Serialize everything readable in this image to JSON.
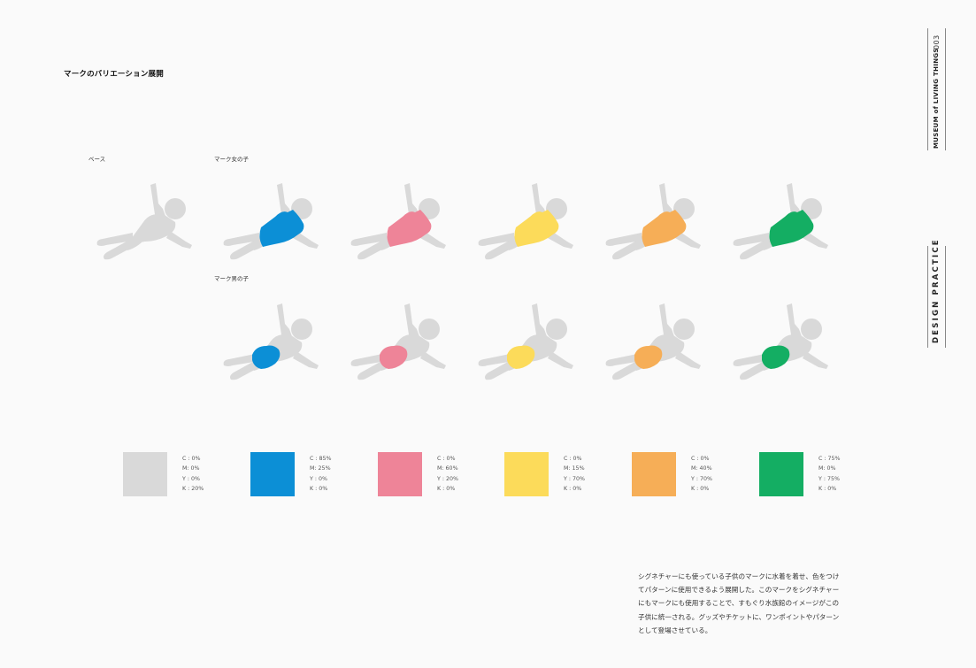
{
  "page_title": "マークのバリエーション展開",
  "labels": {
    "base": "ベース",
    "girl": "マーク女の子",
    "boy": "マーク男の子"
  },
  "colors": {
    "base_gray": "#d9d9d9",
    "blue": "#0c8fd6",
    "pink": "#ee8498",
    "yellow": "#fcdb5a",
    "orange": "#f6ae57",
    "green": "#14ae63"
  },
  "girls": [
    {
      "color": "#0c8fd6"
    },
    {
      "color": "#ee8498"
    },
    {
      "color": "#fcdb5a"
    },
    {
      "color": "#f6ae57"
    },
    {
      "color": "#14ae63"
    }
  ],
  "boys": [
    {
      "color": "#0c8fd6"
    },
    {
      "color": "#ee8498"
    },
    {
      "color": "#fcdb5a"
    },
    {
      "color": "#f6ae57"
    },
    {
      "color": "#14ae63"
    }
  ],
  "swatches": [
    {
      "color": "#d9d9d9",
      "c": "C : 0%",
      "m": "M: 0%",
      "y": "Y : 0%",
      "k": "K : 20%"
    },
    {
      "color": "#0c8fd6",
      "c": "C : 85%",
      "m": "M: 25%",
      "y": "Y : 0%",
      "k": "K : 0%"
    },
    {
      "color": "#ee8498",
      "c": "C : 0%",
      "m": "M: 60%",
      "y": "Y : 20%",
      "k": "K : 0%"
    },
    {
      "color": "#fcdb5a",
      "c": "C : 0%",
      "m": "M: 15%",
      "y": "Y : 70%",
      "k": "K : 0%"
    },
    {
      "color": "#f6ae57",
      "c": "C : 0%",
      "m": "M: 40%",
      "y": "Y : 70%",
      "k": "K : 0%"
    },
    {
      "color": "#14ae63",
      "c": "C : 75%",
      "m": "M: 0%",
      "y": "Y : 75%",
      "k": "K : 0%"
    }
  ],
  "body_text": "シグネチャーにも使っている子供のマークに水着を着せ、色をつけてパターンに使用できるよう展開した。このマークをシグネチャーにもマークにも使用することで、すもぐり水族館のイメージがこの子供に統一される。グッズやチケットに、ワンポイントやパターンとして登場させている。",
  "side": {
    "museum": "MUSEUM of LIVING THINGS",
    "page_number": "003",
    "section": "DESIGN PRACTICE"
  }
}
